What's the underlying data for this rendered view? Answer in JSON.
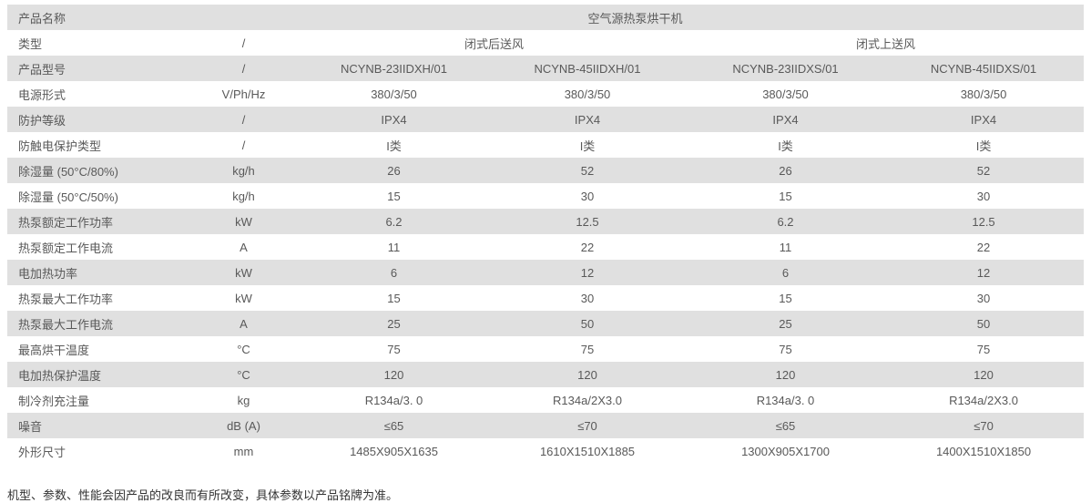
{
  "table": {
    "product_name_label": "产品名称",
    "product_name": "空气源热泵烘干机",
    "rows": [
      {
        "label": "产品名称",
        "cells": [
          {
            "text": "空气源热泵烘干机",
            "colspan": 5
          }
        ]
      },
      {
        "label": "类型",
        "cells": [
          {
            "text": "/"
          },
          {
            "text": "闭式后送风",
            "colspan": 2
          },
          {
            "text": "闭式上送风",
            "colspan": 2
          }
        ]
      },
      {
        "label": "产品型号",
        "cells": [
          {
            "text": "/"
          },
          {
            "text": "NCYNB-23IIDXH/01"
          },
          {
            "text": "NCYNB-45IIDXH/01"
          },
          {
            "text": "NCYNB-23IIDXS/01"
          },
          {
            "text": "NCYNB-45IIDXS/01"
          }
        ]
      },
      {
        "label": "电源形式",
        "cells": [
          {
            "text": "V/Ph/Hz"
          },
          {
            "text": "380/3/50"
          },
          {
            "text": "380/3/50"
          },
          {
            "text": "380/3/50"
          },
          {
            "text": "380/3/50"
          }
        ]
      },
      {
        "label": "防护等级",
        "cells": [
          {
            "text": "/"
          },
          {
            "text": "IPX4"
          },
          {
            "text": "IPX4"
          },
          {
            "text": "IPX4"
          },
          {
            "text": "IPX4"
          }
        ]
      },
      {
        "label": "防触电保护类型",
        "cells": [
          {
            "text": "/"
          },
          {
            "text": "I类"
          },
          {
            "text": "I类"
          },
          {
            "text": "I类"
          },
          {
            "text": "I类"
          }
        ]
      },
      {
        "label": "除湿量 (50°C/80%)",
        "cells": [
          {
            "text": "kg/h"
          },
          {
            "text": "26"
          },
          {
            "text": "52"
          },
          {
            "text": "26"
          },
          {
            "text": "52"
          }
        ]
      },
      {
        "label": "除湿量 (50°C/50%)",
        "cells": [
          {
            "text": "kg/h"
          },
          {
            "text": "15"
          },
          {
            "text": "30"
          },
          {
            "text": "15"
          },
          {
            "text": "30"
          }
        ]
      },
      {
        "label": "热泵额定工作功率",
        "cells": [
          {
            "text": "kW"
          },
          {
            "text": "6.2"
          },
          {
            "text": "12.5"
          },
          {
            "text": "6.2"
          },
          {
            "text": "12.5"
          }
        ]
      },
      {
        "label": "热泵额定工作电流",
        "cells": [
          {
            "text": "A"
          },
          {
            "text": "11"
          },
          {
            "text": "22"
          },
          {
            "text": "11"
          },
          {
            "text": "22"
          }
        ]
      },
      {
        "label": "电加热功率",
        "cells": [
          {
            "text": "kW"
          },
          {
            "text": "6"
          },
          {
            "text": "12"
          },
          {
            "text": "6"
          },
          {
            "text": "12"
          }
        ]
      },
      {
        "label": "热泵最大工作功率",
        "cells": [
          {
            "text": "kW"
          },
          {
            "text": "15"
          },
          {
            "text": "30"
          },
          {
            "text": "15"
          },
          {
            "text": "30"
          }
        ]
      },
      {
        "label": "热泵最大工作电流",
        "cells": [
          {
            "text": "A"
          },
          {
            "text": "25"
          },
          {
            "text": "50"
          },
          {
            "text": "25"
          },
          {
            "text": "50"
          }
        ]
      },
      {
        "label": "最高烘干温度",
        "cells": [
          {
            "text": "°C"
          },
          {
            "text": "75"
          },
          {
            "text": "75"
          },
          {
            "text": "75"
          },
          {
            "text": "75"
          }
        ]
      },
      {
        "label": "电加热保护温度",
        "cells": [
          {
            "text": "°C"
          },
          {
            "text": "120"
          },
          {
            "text": "120"
          },
          {
            "text": "120"
          },
          {
            "text": "120"
          }
        ]
      },
      {
        "label": "制冷剂充注量",
        "cells": [
          {
            "text": "kg"
          },
          {
            "text": "R134a/3. 0"
          },
          {
            "text": "R134a/2X3.0"
          },
          {
            "text": "R134a/3. 0"
          },
          {
            "text": "R134a/2X3.0"
          }
        ]
      },
      {
        "label": "噪音",
        "cells": [
          {
            "text": "dB (A)"
          },
          {
            "text": "≤65"
          },
          {
            "text": "≤70"
          },
          {
            "text": "≤65"
          },
          {
            "text": "≤70"
          }
        ]
      },
      {
        "label": "外形尺寸",
        "cells": [
          {
            "text": "mm"
          },
          {
            "text": "1485X905X1635"
          },
          {
            "text": "1610X1510X1885"
          },
          {
            "text": "1300X905X1700"
          },
          {
            "text": "1400X1510X1850"
          }
        ]
      }
    ]
  },
  "footer_note": "机型、参数、性能会因产品的改良而有所改变，具体参数以产品铭牌为准。",
  "colors": {
    "stripe_gray": "#e0e0e0",
    "table_text": "#595959",
    "footer_text": "#333333",
    "background": "#ffffff"
  }
}
